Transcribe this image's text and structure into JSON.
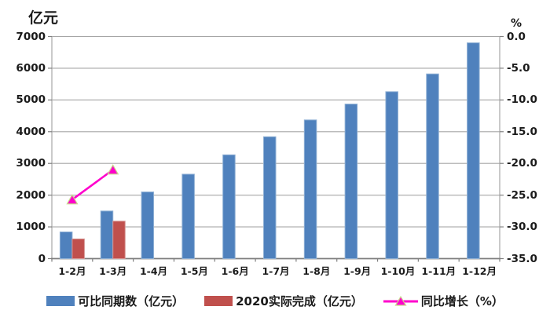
{
  "chart_data": {
    "type": "bar",
    "title": "",
    "left_axis_title": "亿元",
    "right_axis_title": "%",
    "categories": [
      "1-2月",
      "1-3月",
      "1-4月",
      "1-5月",
      "1-6月",
      "1-7月",
      "1-8月",
      "1-9月",
      "1-10月",
      "1-11月",
      "1-12月"
    ],
    "series": [
      {
        "name": "可比同期数（亿元）",
        "type": "bar",
        "axis": "left",
        "color": "#4F81BD",
        "edge_color": "#8EAFD4",
        "values": [
          840,
          1500,
          2100,
          2660,
          3270,
          3840,
          4370,
          4870,
          5260,
          5820,
          6800
        ]
      },
      {
        "name": "2020实际完成（亿元）",
        "type": "bar",
        "axis": "left",
        "color": "#C0504D",
        "edge_color": "#D79694",
        "values": [
          620,
          1180,
          null,
          null,
          null,
          null,
          null,
          null,
          null,
          null,
          null
        ]
      },
      {
        "name": "同比增长（%）",
        "type": "line",
        "axis": "right",
        "color": "#FF00CC",
        "marker": "triangle",
        "marker_edge_color": "#C9D98C",
        "values": [
          -25.7,
          -21.0,
          null,
          null,
          null,
          null,
          null,
          null,
          null,
          null,
          null
        ]
      }
    ],
    "left_ylim": [
      0,
      7000
    ],
    "left_tick_step": 1000,
    "left_axis_ticks": [
      "7000",
      "6000",
      "5000",
      "4000",
      "3000",
      "2000",
      "1000",
      "0"
    ],
    "right_ylim": [
      -35,
      0
    ],
    "right_tick_step": 5,
    "right_axis_ticks": [
      "0.0",
      "-5.0",
      "-10.0",
      "-15.0",
      "-20.0",
      "-25.0",
      "-30.0",
      "-35.0"
    ],
    "grid": true,
    "gridline_color": "#A6A6A6",
    "axis_line_color": "#7F7F7F",
    "legend_position": "bottom"
  }
}
